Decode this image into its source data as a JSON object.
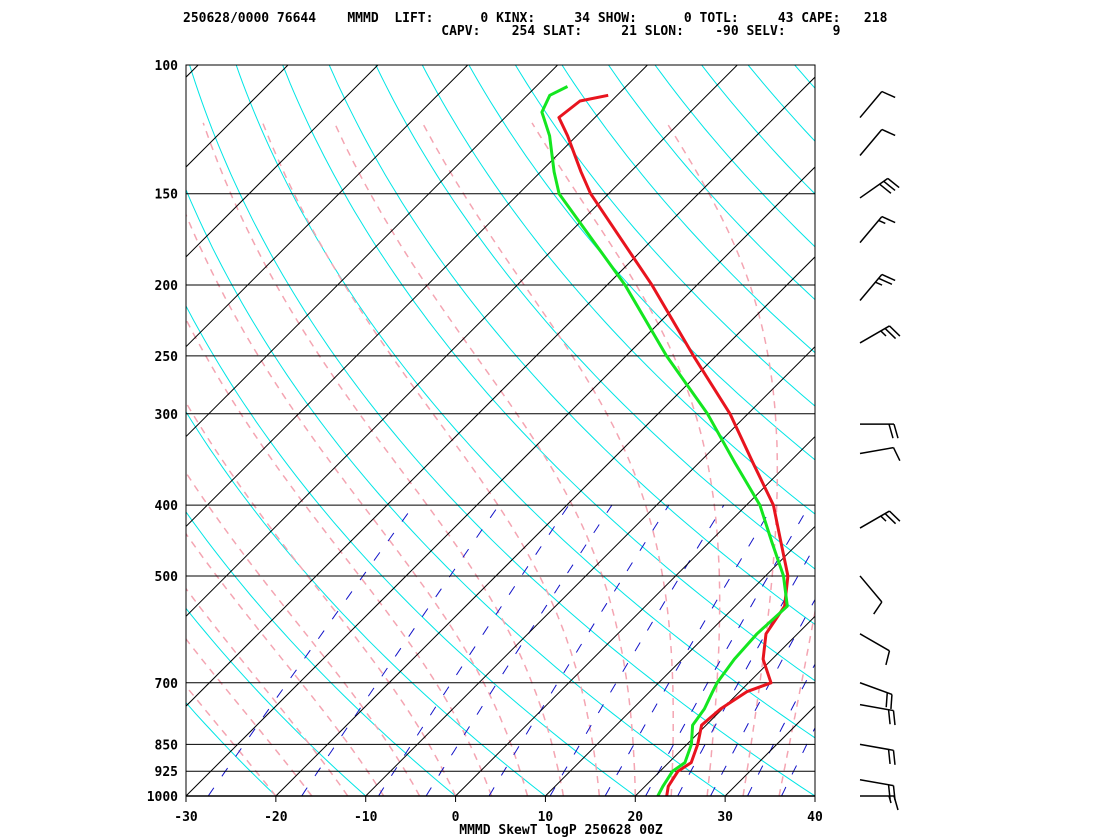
{
  "header": {
    "line1": "250628/0000 76644    MMMD  LIFT:      0 KINX:     34 SHOW:      0 TOTL:     43 CAPE:   218",
    "line2": "                                 CAPV:    254 SLAT:     21 SLON:    -90 SELV:      9"
  },
  "chart_data": {
    "type": "line",
    "title": "MMMD SkewT logP 250628 00Z",
    "xlabel": "",
    "ylabel": "",
    "x_ticks": [
      -30,
      -20,
      -10,
      0,
      10,
      20,
      30,
      40
    ],
    "y_ticks": [
      100,
      150,
      200,
      250,
      300,
      400,
      500,
      700,
      850,
      925,
      1000
    ],
    "xlim": [
      -30,
      40
    ],
    "ylim": [
      1000,
      100
    ],
    "y_scale": "log",
    "skew": true,
    "series": [
      {
        "color": "#e8141e",
        "points": [
          [
            1000,
            23.5
          ],
          [
            970,
            22.6
          ],
          [
            925,
            22.0
          ],
          [
            900,
            22.5
          ],
          [
            850,
            21.2
          ],
          [
            800,
            19.5
          ],
          [
            760,
            19.8
          ],
          [
            720,
            20.8
          ],
          [
            700,
            22.5
          ],
          [
            650,
            19.0
          ],
          [
            600,
            16.5
          ],
          [
            550,
            15.5
          ],
          [
            500,
            12.5
          ],
          [
            450,
            8.0
          ],
          [
            400,
            3.0
          ],
          [
            350,
            -4.0
          ],
          [
            300,
            -12.0
          ],
          [
            250,
            -22.5
          ],
          [
            200,
            -35.0
          ],
          [
            150,
            -52.0
          ],
          [
            140,
            -55.5
          ],
          [
            125,
            -61.0
          ],
          [
            118,
            -64.0
          ],
          [
            112,
            -63.5
          ],
          [
            110,
            -61.0
          ]
        ]
      },
      {
        "color": "#14e620",
        "points": [
          [
            1000,
            22.5
          ],
          [
            970,
            22.0
          ],
          [
            925,
            21.4
          ],
          [
            900,
            21.8
          ],
          [
            850,
            20.5
          ],
          [
            800,
            18.5
          ],
          [
            760,
            18.0
          ],
          [
            720,
            17.0
          ],
          [
            700,
            16.5
          ],
          [
            650,
            15.8
          ],
          [
            600,
            15.5
          ],
          [
            550,
            15.8
          ],
          [
            500,
            12.0
          ],
          [
            450,
            7.0
          ],
          [
            400,
            1.5
          ],
          [
            350,
            -6.0
          ],
          [
            300,
            -14.5
          ],
          [
            250,
            -25.5
          ],
          [
            200,
            -38.0
          ],
          [
            150,
            -55.5
          ],
          [
            140,
            -58.5
          ],
          [
            125,
            -63.0
          ],
          [
            116,
            -66.5
          ],
          [
            110,
            -67.5
          ],
          [
            107,
            -66.5
          ]
        ]
      }
    ],
    "winds": [
      {
        "p": 1000,
        "dir": 90,
        "spd": 15
      },
      {
        "p": 950,
        "dir": 100,
        "spd": 20
      },
      {
        "p": 850,
        "dir": 100,
        "spd": 20
      },
      {
        "p": 750,
        "dir": 100,
        "spd": 20
      },
      {
        "p": 700,
        "dir": 110,
        "spd": 20
      },
      {
        "p": 600,
        "dir": 120,
        "spd": 10
      },
      {
        "p": 500,
        "dir": 140,
        "spd": 10
      },
      {
        "p": 430,
        "dir": 60,
        "spd": 25
      },
      {
        "p": 340,
        "dir": 80,
        "spd": 10
      },
      {
        "p": 310,
        "dir": 90,
        "spd": 20
      },
      {
        "p": 240,
        "dir": 60,
        "spd": 25
      },
      {
        "p": 210,
        "dir": 40,
        "spd": 25
      },
      {
        "p": 175,
        "dir": 40,
        "spd": 15
      },
      {
        "p": 152,
        "dir": 55,
        "spd": 30
      },
      {
        "p": 133,
        "dir": 40,
        "spd": 10
      },
      {
        "p": 118,
        "dir": 40,
        "spd": 10
      }
    ],
    "colors": {
      "isobar": "#000000",
      "isotherm": "#000000",
      "dry_adiabat": "#00e5e5",
      "moist_adiabat": "#f4a5b2",
      "mixing_ratio": "#1414c8",
      "frame": "#000000"
    }
  }
}
